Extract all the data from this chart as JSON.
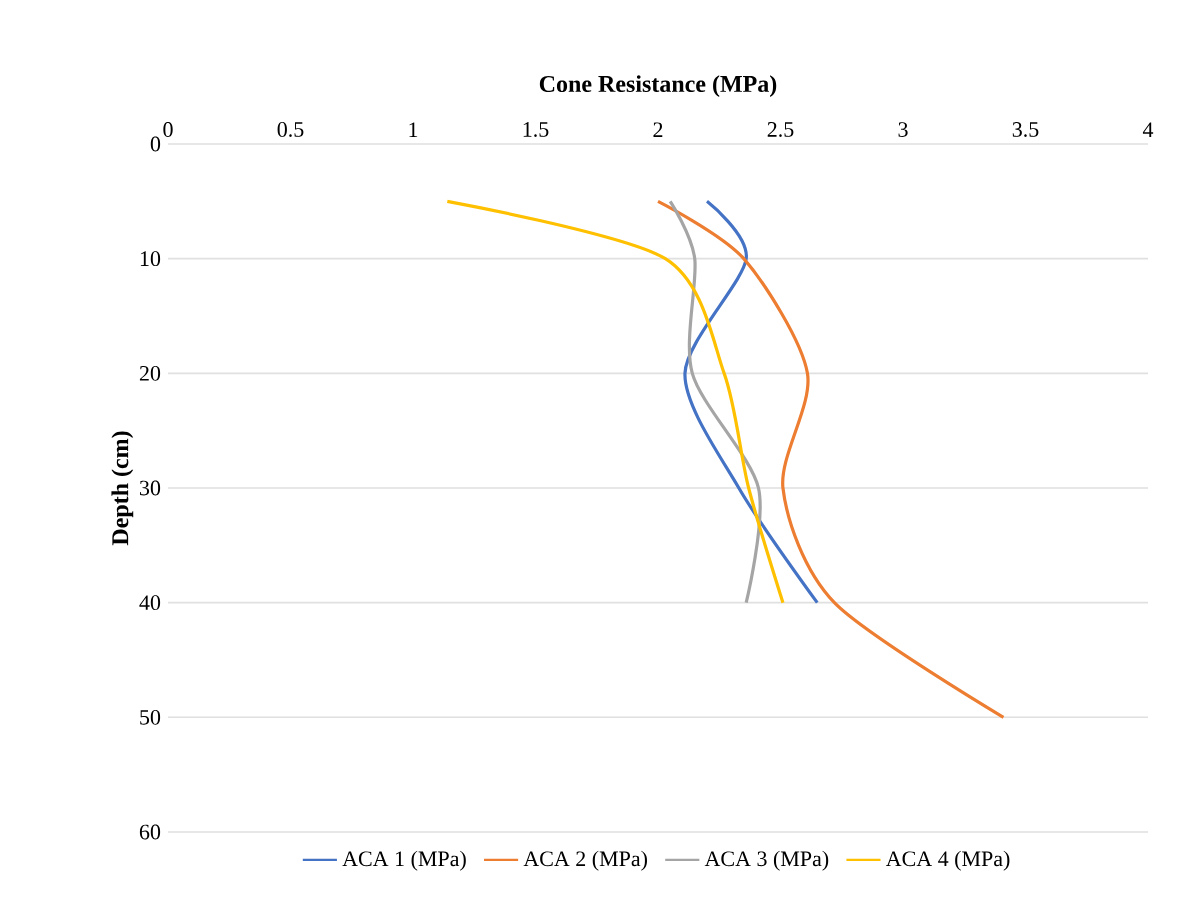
{
  "chart_data": {
    "type": "line",
    "xlabel": "Cone Resistance (MPa)",
    "ylabel": "Depth (cm)",
    "xlim": [
      0,
      4
    ],
    "xticks": [
      0,
      0.5,
      1,
      1.5,
      2,
      2.5,
      3,
      3.5,
      4
    ],
    "ylim": [
      60,
      0
    ],
    "yticks": [
      0,
      10,
      20,
      30,
      40,
      50,
      60
    ],
    "grid": "y",
    "legend": "bottom",
    "marker": "none",
    "series": [
      {
        "name": "ACA 1 (MPa)",
        "color": "#4472c4",
        "x": [
          2.2,
          2.36,
          2.11,
          2.33,
          2.65
        ],
        "values": [
          5,
          10,
          20,
          30,
          40
        ]
      },
      {
        "name": "ACA 2 (MPa)",
        "color": "#ed7d31",
        "x": [
          2.0,
          2.35,
          2.61,
          2.51,
          2.72,
          3.41
        ],
        "values": [
          5,
          10,
          20,
          30,
          40,
          50
        ]
      },
      {
        "name": "ACA 3 (MPa)",
        "color": "#a5a5a5",
        "x": [
          2.05,
          2.15,
          2.14,
          2.41,
          2.36
        ],
        "values": [
          5,
          10,
          20,
          30,
          40
        ]
      },
      {
        "name": "ACA 4 (MPa)",
        "color": "#ffc000",
        "x": [
          1.14,
          2.03,
          2.27,
          2.37,
          2.51
        ],
        "values": [
          5,
          10,
          20,
          30,
          40
        ]
      }
    ]
  }
}
